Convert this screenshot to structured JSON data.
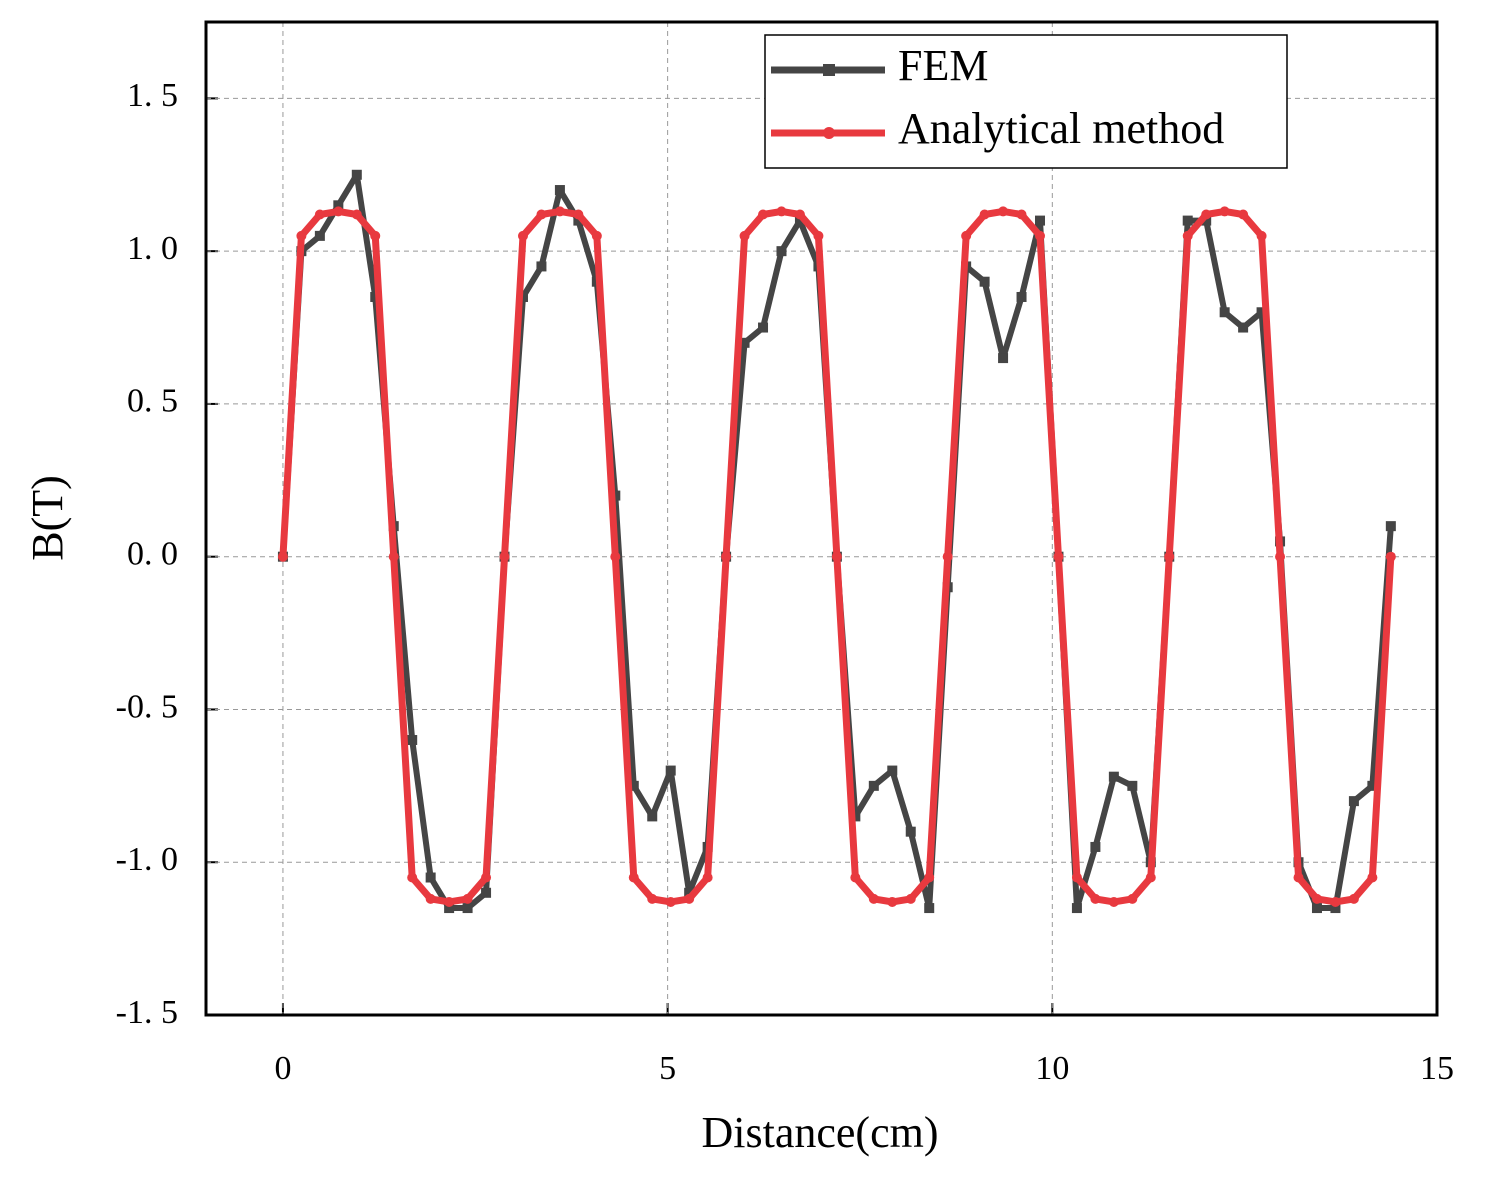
{
  "chart_data": {
    "type": "line",
    "xlabel": "Distance(cm)",
    "ylabel": "B(T)",
    "x": [
      0,
      0.24,
      0.48,
      0.72,
      0.96,
      1.2,
      1.44,
      1.68,
      1.92,
      2.16,
      2.4,
      2.64,
      2.88,
      3.12,
      3.36,
      3.6,
      3.84,
      4.08,
      4.32,
      4.56,
      4.8,
      5.04,
      5.28,
      5.52,
      5.76,
      6.0,
      6.24,
      6.48,
      6.72,
      6.96,
      7.2,
      7.44,
      7.68,
      7.92,
      8.16,
      8.4,
      8.64,
      8.88,
      9.12,
      9.36,
      9.6,
      9.84,
      10.08,
      10.32,
      10.56,
      10.8,
      11.04,
      11.28,
      11.52,
      11.76,
      12.0,
      12.24,
      12.48,
      12.72,
      12.96,
      13.2,
      13.44,
      13.68,
      13.92,
      14.16,
      14.4
    ],
    "series": [
      {
        "name": "FEM",
        "color": "#454545",
        "marker": "square",
        "values": [
          0,
          1.0,
          1.05,
          1.15,
          1.25,
          0.85,
          0.1,
          -0.6,
          -1.05,
          -1.15,
          -1.15,
          -1.1,
          0.0,
          0.85,
          0.95,
          1.2,
          1.1,
          0.9,
          0.2,
          -0.75,
          -0.85,
          -0.7,
          -1.1,
          -0.95,
          0.0,
          0.7,
          0.75,
          1.0,
          1.1,
          0.95,
          0.0,
          -0.85,
          -0.75,
          -0.7,
          -0.9,
          -1.15,
          -0.1,
          0.95,
          0.9,
          0.65,
          0.85,
          1.1,
          0.0,
          -1.15,
          -0.95,
          -0.72,
          -0.75,
          -1.0,
          0.0,
          1.1,
          1.1,
          0.8,
          0.75,
          0.8,
          0.05,
          -1.0,
          -1.15,
          -1.15,
          -0.8,
          -0.75,
          0.1
        ]
      },
      {
        "name": "Analytical method",
        "color": "#e8393f",
        "marker": "circle",
        "values": [
          0,
          1.05,
          1.12,
          1.13,
          1.12,
          1.05,
          0,
          -1.05,
          -1.12,
          -1.13,
          -1.12,
          -1.05,
          0,
          1.05,
          1.12,
          1.13,
          1.12,
          1.05,
          0,
          -1.05,
          -1.12,
          -1.13,
          -1.12,
          -1.05,
          0,
          1.05,
          1.12,
          1.13,
          1.12,
          1.05,
          0,
          -1.05,
          -1.12,
          -1.13,
          -1.12,
          -1.05,
          0,
          1.05,
          1.12,
          1.13,
          1.12,
          1.05,
          0,
          -1.05,
          -1.12,
          -1.13,
          -1.12,
          -1.05,
          0,
          1.05,
          1.12,
          1.13,
          1.12,
          1.05,
          0,
          -1.05,
          -1.12,
          -1.13,
          -1.12,
          -1.05,
          0
        ]
      }
    ],
    "xlim": [
      -1,
      15
    ],
    "xticks": [
      0,
      5,
      10,
      15
    ],
    "ylim": [
      -1.5,
      1.75
    ],
    "yticks": [
      {
        "value": -1.5,
        "label": "-1. 5"
      },
      {
        "value": -1.0,
        "label": "-1. 0"
      },
      {
        "value": -0.5,
        "label": "-0. 5"
      },
      {
        "value": 0.0,
        "label": "0. 0"
      },
      {
        "value": 0.5,
        "label": "0. 5"
      },
      {
        "value": 1.0,
        "label": "1. 0"
      },
      {
        "value": 1.5,
        "label": "1. 5"
      }
    ],
    "grid": true,
    "legend": "upper right"
  }
}
